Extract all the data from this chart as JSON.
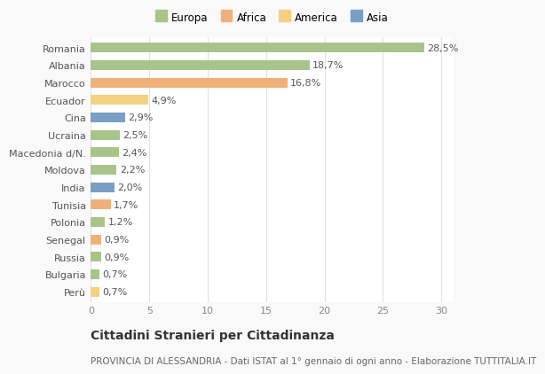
{
  "countries": [
    "Romania",
    "Albania",
    "Marocco",
    "Ecuador",
    "Cina",
    "Ucraina",
    "Macedonia d/N.",
    "Moldova",
    "India",
    "Tunisia",
    "Polonia",
    "Senegal",
    "Russia",
    "Bulgaria",
    "Perù"
  ],
  "values": [
    28.5,
    18.7,
    16.8,
    4.9,
    2.9,
    2.5,
    2.4,
    2.2,
    2.0,
    1.7,
    1.2,
    0.9,
    0.9,
    0.7,
    0.7
  ],
  "labels": [
    "28,5%",
    "18,7%",
    "16,8%",
    "4,9%",
    "2,9%",
    "2,5%",
    "2,4%",
    "2,2%",
    "2,0%",
    "1,7%",
    "1,2%",
    "0,9%",
    "0,9%",
    "0,7%",
    "0,7%"
  ],
  "colors": [
    "#a8c48a",
    "#a8c48a",
    "#f0b07a",
    "#f5d080",
    "#7a9ec4",
    "#a8c48a",
    "#a8c48a",
    "#a8c48a",
    "#7a9ec4",
    "#f0b07a",
    "#a8c48a",
    "#f0b07a",
    "#a8c48a",
    "#a8c48a",
    "#f5d080"
  ],
  "legend_labels": [
    "Europa",
    "Africa",
    "America",
    "Asia"
  ],
  "legend_colors": [
    "#a8c48a",
    "#f0b07a",
    "#f5d080",
    "#7a9ec4"
  ],
  "title": "Cittadini Stranieri per Cittadinanza",
  "subtitle": "PROVINCIA DI ALESSANDRIA - Dati ISTAT al 1° gennaio di ogni anno - Elaborazione TUTTITALIA.IT",
  "xlim": [
    0,
    31
  ],
  "xticks": [
    0,
    5,
    10,
    15,
    20,
    25,
    30
  ],
  "plot_bg": "#ffffff",
  "fig_bg": "#f9f9f9",
  "grid_color": "#e0e0e0",
  "label_fontsize": 8,
  "tick_fontsize": 8,
  "title_fontsize": 10,
  "subtitle_fontsize": 7.5,
  "bar_height": 0.55
}
